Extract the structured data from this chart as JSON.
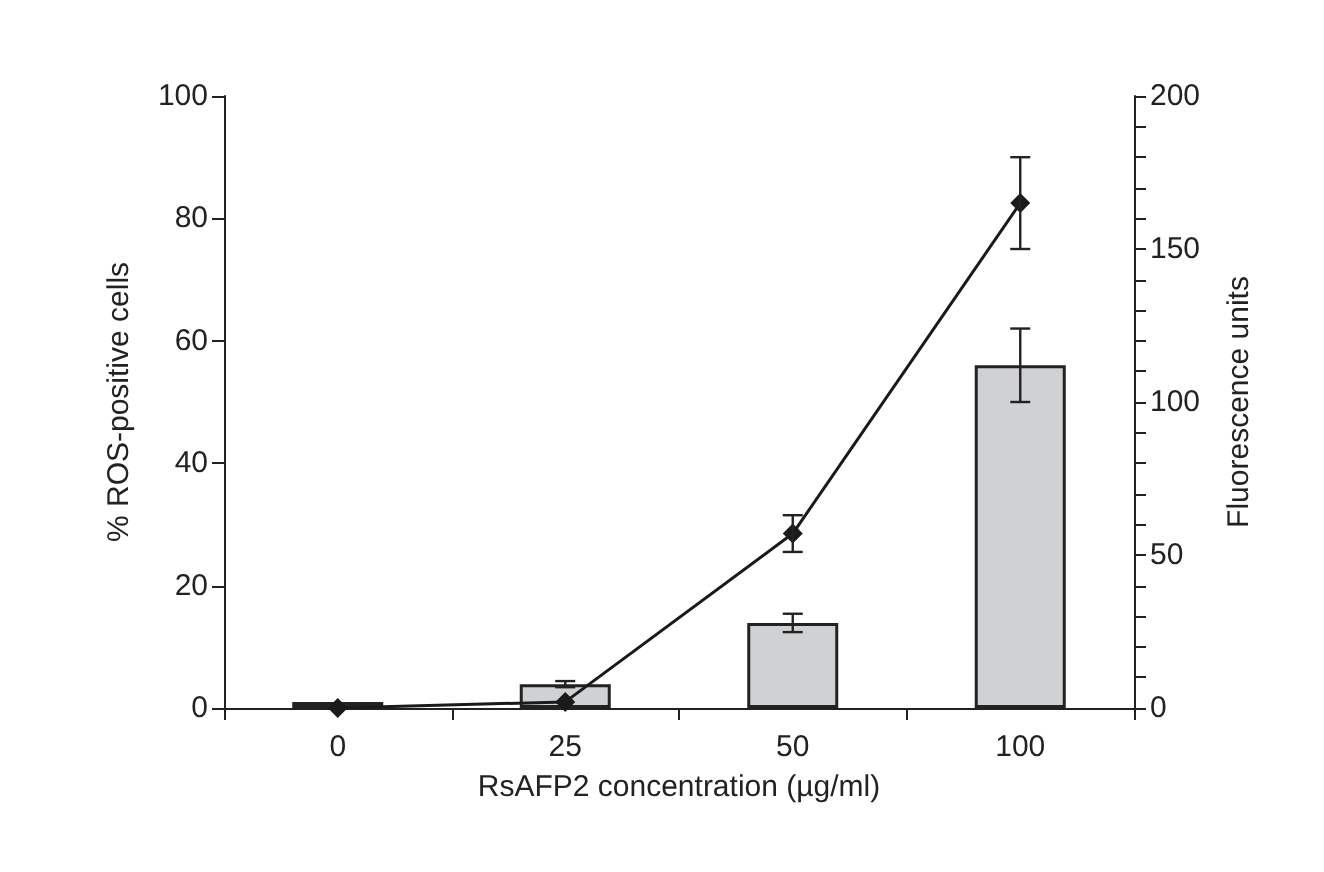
{
  "chart_data": {
    "type": "bar",
    "xlabel": "RsAFP2 concentration (µg/ml)",
    "ylabel": "% ROS-positive cells",
    "y2label": "Fluorescence units",
    "categories": [
      "0",
      "25",
      "50",
      "100"
    ],
    "series": [
      {
        "color": "#d0d1d3",
        "values": [
          1.0,
          3.9,
          13.9,
          56
        ],
        "errors": [
          null,
          0.5,
          1.5,
          6
        ]
      },
      {
        "type": "line",
        "axis": "y2",
        "color": "#1a1a1a",
        "marker": "diamond",
        "line_style": "solid",
        "values": [
          0,
          2,
          57,
          165
        ],
        "errors": [
          null,
          null,
          6,
          15
        ]
      }
    ],
    "ylim": [
      0,
      100
    ],
    "yticks": [
      0,
      20,
      40,
      60,
      80,
      100
    ],
    "y2lim": [
      0,
      200
    ],
    "y2ticks": [
      0,
      {
        "value": 10,
        "label": null
      },
      {
        "value": 20,
        "label": null
      },
      {
        "value": 30,
        "label": null
      },
      {
        "value": 40,
        "label": null
      },
      50,
      {
        "value": 60,
        "label": null
      },
      {
        "value": 70,
        "label": null
      },
      {
        "value": 80,
        "label": null
      },
      {
        "value": 90,
        "label": null
      },
      100,
      {
        "value": 110,
        "label": null
      },
      {
        "value": 120,
        "label": null
      },
      {
        "value": 130,
        "label": null
      },
      {
        "value": 140,
        "label": null
      },
      150,
      {
        "value": 160,
        "label": null
      },
      {
        "value": 170,
        "label": null
      },
      {
        "value": 180,
        "label": null
      },
      {
        "value": 190,
        "label": null
      },
      200
    ],
    "grid": false
  }
}
